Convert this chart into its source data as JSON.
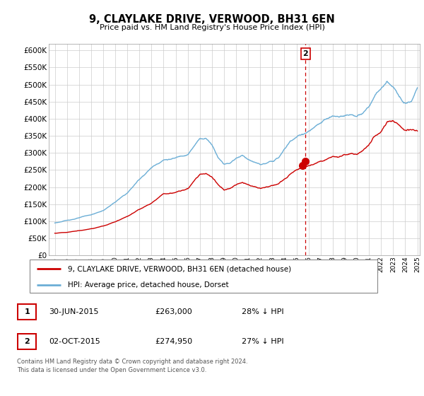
{
  "title": "9, CLAYLAKE DRIVE, VERWOOD, BH31 6EN",
  "subtitle": "Price paid vs. HM Land Registry's House Price Index (HPI)",
  "ytick_values": [
    0,
    50000,
    100000,
    150000,
    200000,
    250000,
    300000,
    350000,
    400000,
    450000,
    500000,
    550000,
    600000
  ],
  "ylim": [
    0,
    620000
  ],
  "hpi_color": "#6baed6",
  "price_color": "#cc0000",
  "dashed_color": "#cc0000",
  "legend_label1": "9, CLAYLAKE DRIVE, VERWOOD, BH31 6EN (detached house)",
  "legend_label2": "HPI: Average price, detached house, Dorset",
  "table_rows": [
    [
      "1",
      "30-JUN-2015",
      "£263,000",
      "28% ↓ HPI"
    ],
    [
      "2",
      "02-OCT-2015",
      "£274,950",
      "27% ↓ HPI"
    ]
  ],
  "footer": "Contains HM Land Registry data © Crown copyright and database right 2024.\nThis data is licensed under the Open Government Licence v3.0.",
  "xmin": 1995,
  "xmax": 2025,
  "t1_x": 2015.5,
  "t1_y": 263000,
  "t2_x": 2015.75,
  "t2_y": 274950,
  "grid_color": "#cccccc",
  "background_color": "#ffffff"
}
